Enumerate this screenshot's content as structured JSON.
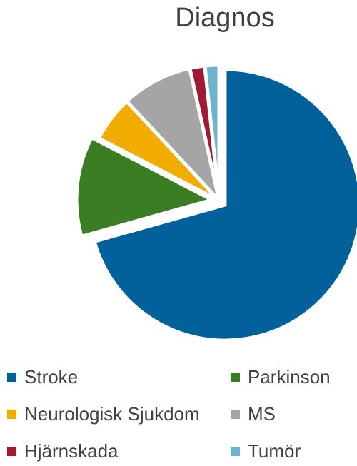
{
  "chart_data": {
    "type": "pie",
    "title": "Diagnos",
    "categories": [
      "Stroke",
      "Parkinson",
      "Neurologisk Sjukdom",
      "MS",
      "Hjärnskada",
      "Tumör"
    ],
    "values": [
      71,
      12,
      5.5,
      8.5,
      1.8,
      1.7
    ],
    "unit": "%",
    "colors": [
      "#02619A",
      "#3A7D22",
      "#F2AC00",
      "#A5A5A5",
      "#9E1B32",
      "#6FB4CE"
    ],
    "exploded": [
      true,
      true,
      false,
      false,
      false,
      false
    ],
    "legend_position": "bottom",
    "start_angle_deg": 0,
    "direction": "clockwise"
  }
}
